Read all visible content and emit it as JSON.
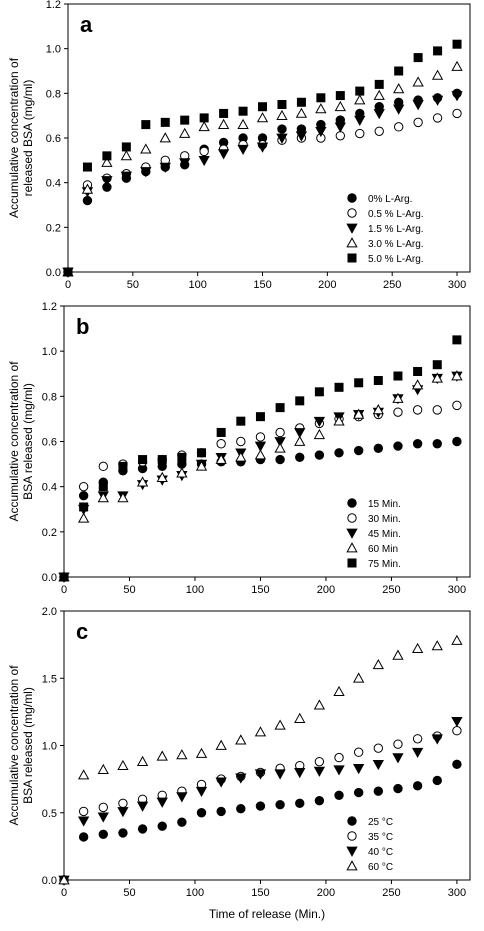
{
  "figure": {
    "xlabel": "Time of release (Min.)"
  },
  "chart_data": [
    {
      "type": "scatter",
      "panel_label": "a",
      "ylabel": "Accumulative concentration of released BSA (mg/ml)",
      "ylabel_lines": [
        "Accumulative concentration of",
        "released BSA (mg/ml)"
      ],
      "xlabel": "",
      "xlim": [
        0,
        310
      ],
      "ylim": [
        0.0,
        1.2
      ],
      "xticks": [
        "0",
        "50",
        "100",
        "150",
        "200",
        "250",
        "300"
      ],
      "yticks": [
        "0.0",
        "0.2",
        "0.4",
        "0.6",
        "0.8",
        "1.0",
        "1.2"
      ],
      "legend_position": "bottom-right",
      "x": [
        0,
        15,
        30,
        45,
        60,
        75,
        90,
        105,
        120,
        135,
        150,
        165,
        180,
        195,
        210,
        225,
        240,
        255,
        270,
        285,
        300
      ],
      "series": [
        {
          "name": "0% L-Arg.",
          "marker": "filled-circle",
          "values": [
            0.0,
            0.32,
            0.38,
            0.42,
            0.45,
            0.47,
            0.48,
            0.55,
            0.58,
            0.6,
            0.6,
            0.64,
            0.64,
            0.66,
            0.68,
            0.71,
            0.74,
            0.76,
            0.77,
            0.78,
            0.8
          ]
        },
        {
          "name": "0.5 % L-Arg.",
          "marker": "open-circle",
          "values": [
            0.0,
            0.39,
            0.42,
            0.44,
            0.47,
            0.5,
            0.52,
            0.54,
            0.55,
            0.57,
            0.57,
            0.59,
            0.6,
            0.6,
            0.61,
            0.62,
            0.63,
            0.65,
            0.67,
            0.69,
            0.71
          ]
        },
        {
          "name": "1.5 % L-Arg.",
          "marker": "filled-triangle-down",
          "values": [
            0.0,
            0.36,
            0.41,
            0.43,
            0.45,
            0.47,
            0.49,
            0.5,
            0.53,
            0.55,
            0.56,
            0.6,
            0.61,
            0.63,
            0.65,
            0.68,
            0.71,
            0.73,
            0.75,
            0.77,
            0.79
          ]
        },
        {
          "name": "3.0 % L-Arg.",
          "marker": "open-triangle-up",
          "values": [
            0.0,
            0.37,
            0.49,
            0.52,
            0.55,
            0.6,
            0.62,
            0.65,
            0.66,
            0.66,
            0.69,
            0.7,
            0.71,
            0.73,
            0.74,
            0.77,
            0.79,
            0.82,
            0.85,
            0.88,
            0.92
          ]
        },
        {
          "name": "5.0 % L-Arg.",
          "marker": "filled-square",
          "values": [
            0.0,
            0.47,
            0.52,
            0.56,
            0.66,
            0.67,
            0.68,
            0.69,
            0.71,
            0.72,
            0.74,
            0.75,
            0.76,
            0.78,
            0.79,
            0.81,
            0.84,
            0.9,
            0.96,
            0.99,
            1.02
          ]
        }
      ]
    },
    {
      "type": "scatter",
      "panel_label": "b",
      "ylabel": "Accumulative concentration of BSA released (mg/ml)",
      "ylabel_lines": [
        "Accumulative concentration of",
        "BSA released (mg/ml)"
      ],
      "xlabel": "",
      "xlim": [
        0,
        310
      ],
      "ylim": [
        0.0,
        1.2
      ],
      "xticks": [
        "0",
        "50",
        "100",
        "150",
        "200",
        "250",
        "300"
      ],
      "yticks": [
        "0.0",
        "0.2",
        "0.4",
        "0.6",
        "0.8",
        "1.0",
        "1.2"
      ],
      "legend_position": "bottom-right",
      "x": [
        0,
        15,
        30,
        45,
        60,
        75,
        90,
        105,
        120,
        135,
        150,
        165,
        180,
        195,
        210,
        225,
        240,
        255,
        270,
        285,
        300
      ],
      "series": [
        {
          "name": "15 Min.",
          "marker": "filled-circle",
          "values": [
            0.0,
            0.36,
            0.42,
            0.47,
            0.48,
            0.49,
            0.5,
            0.5,
            0.51,
            0.51,
            0.52,
            0.52,
            0.53,
            0.54,
            0.55,
            0.56,
            0.57,
            0.58,
            0.59,
            0.59,
            0.6
          ]
        },
        {
          "name": "30 Min.",
          "marker": "open-circle",
          "values": [
            0.0,
            0.4,
            0.49,
            0.5,
            0.51,
            0.52,
            0.54,
            0.55,
            0.59,
            0.6,
            0.62,
            0.64,
            0.66,
            0.68,
            0.7,
            0.71,
            0.72,
            0.73,
            0.74,
            0.74,
            0.76
          ]
        },
        {
          "name": "45 Min.",
          "marker": "filled-triangle-down",
          "values": [
            0.0,
            0.3,
            0.36,
            0.36,
            0.41,
            0.43,
            0.45,
            0.5,
            0.53,
            0.55,
            0.58,
            0.6,
            0.64,
            0.69,
            0.71,
            0.72,
            0.73,
            0.79,
            0.83,
            0.88,
            0.89
          ]
        },
        {
          "name": "60 Min",
          "marker": "open-triangle-up",
          "values": [
            0.0,
            0.26,
            0.35,
            0.35,
            0.42,
            0.44,
            0.46,
            0.49,
            0.52,
            0.53,
            0.54,
            0.57,
            0.6,
            0.63,
            0.69,
            0.72,
            0.74,
            0.79,
            0.85,
            0.88,
            0.89
          ]
        },
        {
          "name": "75 Min.",
          "marker": "filled-square",
          "values": [
            0.0,
            0.31,
            0.4,
            0.49,
            0.52,
            0.52,
            0.53,
            0.55,
            0.64,
            0.69,
            0.71,
            0.75,
            0.78,
            0.82,
            0.84,
            0.86,
            0.87,
            0.89,
            0.91,
            0.94,
            1.05
          ]
        }
      ]
    },
    {
      "type": "scatter",
      "panel_label": "c",
      "ylabel": "Accumulative concentration of BSA released (mg/ml)",
      "ylabel_lines": [
        "Accumulative concentration of",
        "BSA released (mg/ml)"
      ],
      "xlabel": "Time of release (Min.)",
      "xlim": [
        0,
        310
      ],
      "ylim": [
        0.0,
        2.0
      ],
      "xticks": [
        "0",
        "50",
        "100",
        "150",
        "200",
        "250",
        "300"
      ],
      "yticks": [
        "0.0",
        "0.5",
        "1.0",
        "1.5",
        "2.0"
      ],
      "legend_position": "bottom-right",
      "x": [
        0,
        15,
        30,
        45,
        60,
        75,
        90,
        105,
        120,
        135,
        150,
        165,
        180,
        195,
        210,
        225,
        240,
        255,
        270,
        285,
        300
      ],
      "series": [
        {
          "name": "25 °C",
          "marker": "filled-circle",
          "values": [
            0.0,
            0.32,
            0.34,
            0.35,
            0.38,
            0.4,
            0.43,
            0.5,
            0.51,
            0.53,
            0.55,
            0.56,
            0.57,
            0.59,
            0.63,
            0.65,
            0.66,
            0.68,
            0.7,
            0.74,
            0.86
          ]
        },
        {
          "name": "35 °C",
          "marker": "open-circle",
          "values": [
            0.0,
            0.51,
            0.54,
            0.57,
            0.6,
            0.63,
            0.66,
            0.71,
            0.75,
            0.77,
            0.8,
            0.83,
            0.85,
            0.88,
            0.91,
            0.95,
            0.98,
            1.01,
            1.05,
            1.07,
            1.11
          ]
        },
        {
          "name": "40 °C",
          "marker": "filled-triangle-down",
          "values": [
            0.0,
            0.44,
            0.47,
            0.51,
            0.55,
            0.58,
            0.62,
            0.66,
            0.73,
            0.76,
            0.79,
            0.79,
            0.8,
            0.81,
            0.82,
            0.83,
            0.86,
            0.91,
            0.95,
            1.05,
            1.18
          ]
        },
        {
          "name": "60 °C",
          "marker": "open-triangle-up",
          "values": [
            0.0,
            0.78,
            0.82,
            0.85,
            0.88,
            0.92,
            0.93,
            0.94,
            1.0,
            1.04,
            1.1,
            1.15,
            1.2,
            1.3,
            1.4,
            1.5,
            1.6,
            1.67,
            1.72,
            1.74,
            1.78
          ]
        }
      ]
    }
  ]
}
